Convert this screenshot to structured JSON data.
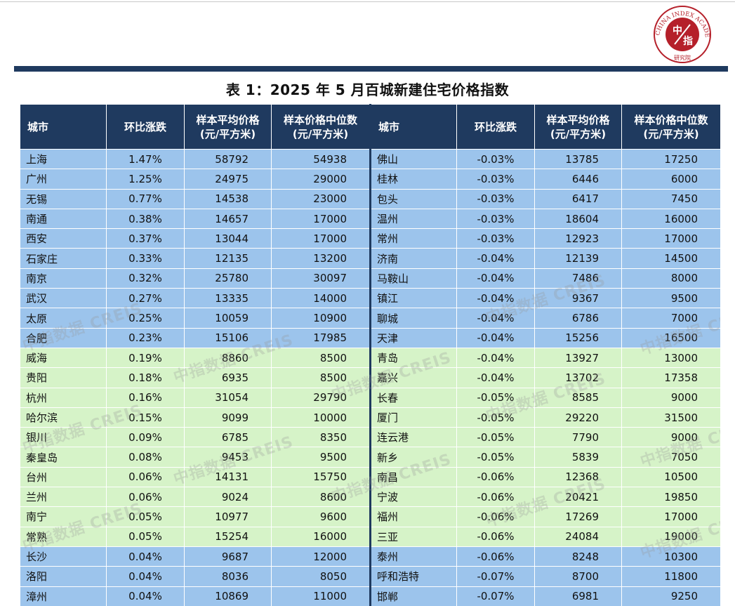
{
  "header": {
    "title": "表 1：2025 年 5 月百城新建住宅价格指数",
    "logo_center": "中指",
    "logo_ring_text": "CHINA INDEX ACADEMY",
    "logo_bottom_text": "研究院"
  },
  "watermark": "中指数据 CREIS",
  "table": {
    "columns_left": [
      "城市",
      "环比涨跌",
      "样本平均价格\n(元/平方米)",
      "样本价格中位数\n(元/平方米)"
    ],
    "columns_right": [
      "城市",
      "环比涨跌",
      "样本平均价格\n(元/平方米)",
      "样本价格中位数\n(元/平方米)"
    ],
    "rows": [
      {
        "band": "blue",
        "l": [
          "上海",
          "1.47%",
          "58792",
          "54938"
        ],
        "r": [
          "佛山",
          "-0.03%",
          "13785",
          "17250"
        ]
      },
      {
        "band": "blue",
        "l": [
          "广州",
          "1.25%",
          "24975",
          "29000"
        ],
        "r": [
          "桂林",
          "-0.03%",
          "6446",
          "6000"
        ]
      },
      {
        "band": "blue",
        "l": [
          "无锡",
          "0.77%",
          "14538",
          "23000"
        ],
        "r": [
          "包头",
          "-0.03%",
          "6417",
          "7450"
        ]
      },
      {
        "band": "blue",
        "l": [
          "南通",
          "0.38%",
          "14657",
          "17000"
        ],
        "r": [
          "温州",
          "-0.03%",
          "18604",
          "16000"
        ]
      },
      {
        "band": "blue",
        "l": [
          "西安",
          "0.37%",
          "13044",
          "17000"
        ],
        "r": [
          "常州",
          "-0.03%",
          "12923",
          "17000"
        ]
      },
      {
        "band": "blue",
        "l": [
          "石家庄",
          "0.33%",
          "12135",
          "13200"
        ],
        "r": [
          "济南",
          "-0.04%",
          "12139",
          "14500"
        ]
      },
      {
        "band": "blue",
        "l": [
          "南京",
          "0.32%",
          "25780",
          "30097"
        ],
        "r": [
          "马鞍山",
          "-0.04%",
          "7486",
          "8000"
        ]
      },
      {
        "band": "blue",
        "l": [
          "武汉",
          "0.27%",
          "13335",
          "14000"
        ],
        "r": [
          "镇江",
          "-0.04%",
          "9367",
          "9500"
        ]
      },
      {
        "band": "blue",
        "l": [
          "太原",
          "0.25%",
          "10059",
          "10900"
        ],
        "r": [
          "聊城",
          "-0.04%",
          "6786",
          "7000"
        ]
      },
      {
        "band": "blue",
        "l": [
          "合肥",
          "0.23%",
          "15106",
          "17985"
        ],
        "r": [
          "天津",
          "-0.04%",
          "15256",
          "16500"
        ]
      },
      {
        "band": "green",
        "l": [
          "威海",
          "0.19%",
          "8860",
          "8500"
        ],
        "r": [
          "青岛",
          "-0.04%",
          "13927",
          "13000"
        ]
      },
      {
        "band": "green",
        "l": [
          "贵阳",
          "0.18%",
          "6935",
          "8500"
        ],
        "r": [
          "嘉兴",
          "-0.04%",
          "13702",
          "17358"
        ]
      },
      {
        "band": "green",
        "l": [
          "杭州",
          "0.16%",
          "31054",
          "29790"
        ],
        "r": [
          "长春",
          "-0.05%",
          "8585",
          "9000"
        ]
      },
      {
        "band": "green",
        "l": [
          "哈尔滨",
          "0.15%",
          "9099",
          "10000"
        ],
        "r": [
          "厦门",
          "-0.05%",
          "29220",
          "31500"
        ]
      },
      {
        "band": "green",
        "l": [
          "银川",
          "0.09%",
          "6785",
          "8350"
        ],
        "r": [
          "连云港",
          "-0.05%",
          "7790",
          "9000"
        ]
      },
      {
        "band": "green",
        "l": [
          "秦皇岛",
          "0.08%",
          "9453",
          "9500"
        ],
        "r": [
          "新乡",
          "-0.05%",
          "5839",
          "7050"
        ]
      },
      {
        "band": "green",
        "l": [
          "台州",
          "0.06%",
          "14131",
          "15750"
        ],
        "r": [
          "南昌",
          "-0.06%",
          "12368",
          "10500"
        ]
      },
      {
        "band": "green",
        "l": [
          "兰州",
          "0.06%",
          "9024",
          "8600"
        ],
        "r": [
          "宁波",
          "-0.06%",
          "20421",
          "19850"
        ]
      },
      {
        "band": "green",
        "l": [
          "南宁",
          "0.05%",
          "10977",
          "9600"
        ],
        "r": [
          "福州",
          "-0.06%",
          "17269",
          "17000"
        ]
      },
      {
        "band": "green",
        "l": [
          "常熟",
          "0.05%",
          "15254",
          "16000"
        ],
        "r": [
          "三亚",
          "-0.06%",
          "24084",
          "19000"
        ]
      },
      {
        "band": "blue",
        "l": [
          "长沙",
          "0.04%",
          "9687",
          "12000"
        ],
        "r": [
          "泰州",
          "-0.06%",
          "8248",
          "10300"
        ]
      },
      {
        "band": "blue",
        "l": [
          "洛阳",
          "0.04%",
          "8036",
          "8050"
        ],
        "r": [
          "呼和浩特",
          "-0.07%",
          "8700",
          "11800"
        ]
      },
      {
        "band": "blue",
        "l": [
          "漳州",
          "0.04%",
          "10869",
          "11000"
        ],
        "r": [
          "邯郸",
          "-0.07%",
          "6981",
          "9250"
        ]
      }
    ]
  },
  "colors": {
    "header_navy": "#1f3a5f",
    "row_blue": "#9cc4ec",
    "row_green": "#d6f3c8",
    "logo_red": "#b5202a"
  }
}
